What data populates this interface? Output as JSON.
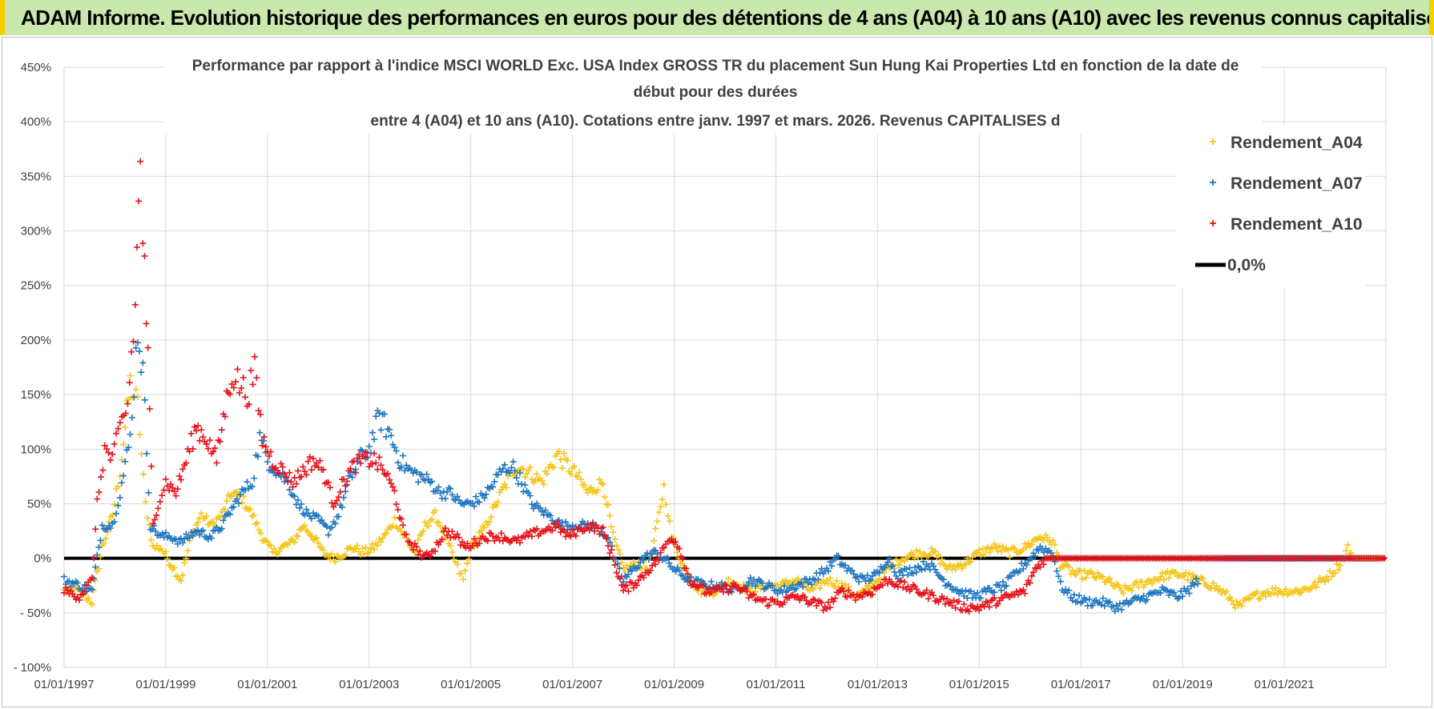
{
  "header": {
    "title": "ADAM Informe. Evolution historique des performances en euros pour des détentions de 4 ans (A04) à 10 ans (A10) avec les revenus connus capitalisés"
  },
  "chart_data": {
    "type": "scatter",
    "title_lines": [
      "Performance par rapport à l'indice MSCI WORLD Exc. USA Index GROSS TR  du placement Sun Hung Kai Properties Ltd en fonction de la date de",
      "début pour des durées",
      "entre 4 (A04) et 10 ans (A10).  Cotations entre janv. 1997 et mars. 2026. Revenus CAPITALISES d"
    ],
    "x_ticks": [
      "01/01/1997",
      "01/01/1999",
      "01/01/2001",
      "01/01/2003",
      "01/01/2005",
      "01/01/2007",
      "01/01/2009",
      "01/01/2011",
      "01/01/2013",
      "01/01/2015",
      "01/01/2017",
      "01/01/2019",
      "01/01/2021"
    ],
    "x_range": [
      1997.0,
      2023.0
    ],
    "y_ticks": [
      "450%",
      "400%",
      "350%",
      "300%",
      "250%",
      "200%",
      "150%",
      "100%",
      "50%",
      "0%",
      "- 50%",
      "- 100%"
    ],
    "y_range": [
      -100,
      450
    ],
    "series": [
      {
        "name": "Rendement_A04",
        "color": "#f5c518",
        "points": [
          [
            1997.0,
            -30
          ],
          [
            1997.3,
            -30
          ],
          [
            1997.55,
            -40
          ],
          [
            1997.75,
            10
          ],
          [
            1997.95,
            40
          ],
          [
            1998.1,
            80
          ],
          [
            1998.3,
            160
          ],
          [
            1998.45,
            140
          ],
          [
            1998.6,
            50
          ],
          [
            1998.75,
            10
          ],
          [
            1998.9,
            10
          ],
          [
            1999.1,
            -5
          ],
          [
            1999.3,
            -20
          ],
          [
            1999.5,
            20
          ],
          [
            1999.7,
            40
          ],
          [
            1999.9,
            30
          ],
          [
            2000.1,
            40
          ],
          [
            2000.3,
            60
          ],
          [
            2000.5,
            55
          ],
          [
            2000.7,
            40
          ],
          [
            2000.9,
            20
          ],
          [
            2001.1,
            5
          ],
          [
            2001.3,
            10
          ],
          [
            2001.5,
            15
          ],
          [
            2001.7,
            30
          ],
          [
            2001.9,
            20
          ],
          [
            2002.1,
            5
          ],
          [
            2002.3,
            0
          ],
          [
            2002.5,
            5
          ],
          [
            2002.7,
            10
          ],
          [
            2002.9,
            5
          ],
          [
            2003.1,
            10
          ],
          [
            2003.3,
            20
          ],
          [
            2003.5,
            35
          ],
          [
            2003.7,
            20
          ],
          [
            2003.9,
            5
          ],
          [
            2004.1,
            30
          ],
          [
            2004.3,
            40
          ],
          [
            2004.5,
            20
          ],
          [
            2004.7,
            -5
          ],
          [
            2004.85,
            -20
          ],
          [
            2005.0,
            10
          ],
          [
            2005.3,
            30
          ],
          [
            2005.6,
            60
          ],
          [
            2005.9,
            85
          ],
          [
            2006.1,
            80
          ],
          [
            2006.4,
            70
          ],
          [
            2006.7,
            95
          ],
          [
            2006.9,
            85
          ],
          [
            2007.1,
            75
          ],
          [
            2007.3,
            60
          ],
          [
            2007.6,
            70
          ],
          [
            2007.8,
            20
          ],
          [
            2008.0,
            -10
          ],
          [
            2008.3,
            -5
          ],
          [
            2008.5,
            -10
          ],
          [
            2008.7,
            40
          ],
          [
            2008.8,
            65
          ],
          [
            2008.95,
            20
          ],
          [
            2009.2,
            -10
          ],
          [
            2009.5,
            -30
          ],
          [
            2009.8,
            -30
          ],
          [
            2010.1,
            -20
          ],
          [
            2010.5,
            -30
          ],
          [
            2010.8,
            -25
          ],
          [
            2011.1,
            -25
          ],
          [
            2011.4,
            -20
          ],
          [
            2011.7,
            -30
          ],
          [
            2012.0,
            -20
          ],
          [
            2012.3,
            -25
          ],
          [
            2012.6,
            -35
          ],
          [
            2012.9,
            -25
          ],
          [
            2013.2,
            -10
          ],
          [
            2013.5,
            0
          ],
          [
            2013.8,
            5
          ],
          [
            2014.1,
            5
          ],
          [
            2014.4,
            -10
          ],
          [
            2014.7,
            -5
          ],
          [
            2015.0,
            5
          ],
          [
            2015.3,
            10
          ],
          [
            2015.6,
            5
          ],
          [
            2015.9,
            10
          ],
          [
            2016.2,
            20
          ],
          [
            2016.45,
            15
          ],
          [
            2016.6,
            -5
          ],
          [
            2016.9,
            -15
          ],
          [
            2017.2,
            -15
          ],
          [
            2017.5,
            -20
          ],
          [
            2017.8,
            -30
          ],
          [
            2018.1,
            -25
          ],
          [
            2018.4,
            -20
          ],
          [
            2018.7,
            -15
          ],
          [
            2019.0,
            -15
          ],
          [
            2019.3,
            -20
          ],
          [
            2019.6,
            -25
          ],
          [
            2019.9,
            -35
          ],
          [
            2020.1,
            -45
          ],
          [
            2020.4,
            -35
          ],
          [
            2020.7,
            -30
          ],
          [
            2021.0,
            -30
          ],
          [
            2021.3,
            -30
          ],
          [
            2021.6,
            -25
          ],
          [
            2021.9,
            -15
          ],
          [
            2022.1,
            -5
          ],
          [
            2022.25,
            10
          ],
          [
            2022.35,
            0
          ],
          [
            2022.6,
            0
          ],
          [
            2023.0,
            0
          ]
        ]
      },
      {
        "name": "Rendement_A07",
        "color": "#1f77c0",
        "points": [
          [
            1997.0,
            -20
          ],
          [
            1997.3,
            -25
          ],
          [
            1997.55,
            -30
          ],
          [
            1997.75,
            30
          ],
          [
            1997.95,
            30
          ],
          [
            1998.1,
            60
          ],
          [
            1998.3,
            110
          ],
          [
            1998.45,
            210
          ],
          [
            1998.55,
            170
          ],
          [
            1998.7,
            30
          ],
          [
            1998.9,
            20
          ],
          [
            1999.1,
            20
          ],
          [
            1999.3,
            15
          ],
          [
            1999.6,
            25
          ],
          [
            1999.9,
            20
          ],
          [
            2000.1,
            30
          ],
          [
            2000.3,
            45
          ],
          [
            2000.5,
            60
          ],
          [
            2000.7,
            70
          ],
          [
            2000.85,
            110
          ],
          [
            2001.0,
            90
          ],
          [
            2001.2,
            80
          ],
          [
            2001.4,
            70
          ],
          [
            2001.6,
            50
          ],
          [
            2001.8,
            40
          ],
          [
            2002.0,
            35
          ],
          [
            2002.2,
            25
          ],
          [
            2002.4,
            40
          ],
          [
            2002.6,
            70
          ],
          [
            2002.8,
            90
          ],
          [
            2003.0,
            100
          ],
          [
            2003.2,
            130
          ],
          [
            2003.4,
            115
          ],
          [
            2003.6,
            90
          ],
          [
            2003.8,
            80
          ],
          [
            2004.0,
            75
          ],
          [
            2004.2,
            70
          ],
          [
            2004.4,
            60
          ],
          [
            2004.6,
            60
          ],
          [
            2004.8,
            50
          ],
          [
            2005.0,
            50
          ],
          [
            2005.2,
            55
          ],
          [
            2005.4,
            65
          ],
          [
            2005.6,
            80
          ],
          [
            2005.8,
            85
          ],
          [
            2006.0,
            70
          ],
          [
            2006.2,
            50
          ],
          [
            2006.5,
            40
          ],
          [
            2006.8,
            30
          ],
          [
            2007.1,
            30
          ],
          [
            2007.4,
            30
          ],
          [
            2007.7,
            20
          ],
          [
            2007.85,
            -5
          ],
          [
            2008.0,
            -20
          ],
          [
            2008.2,
            -10
          ],
          [
            2008.4,
            0
          ],
          [
            2008.6,
            5
          ],
          [
            2008.8,
            0
          ],
          [
            2009.0,
            -10
          ],
          [
            2009.3,
            -20
          ],
          [
            2009.6,
            -25
          ],
          [
            2009.9,
            -25
          ],
          [
            2010.2,
            -30
          ],
          [
            2010.5,
            -20
          ],
          [
            2010.8,
            -25
          ],
          [
            2011.1,
            -30
          ],
          [
            2011.4,
            -25
          ],
          [
            2011.7,
            -20
          ],
          [
            2012.0,
            -10
          ],
          [
            2012.2,
            0
          ],
          [
            2012.4,
            -10
          ],
          [
            2012.7,
            -20
          ],
          [
            2013.0,
            -15
          ],
          [
            2013.2,
            0
          ],
          [
            2013.4,
            -15
          ],
          [
            2013.7,
            -10
          ],
          [
            2014.0,
            -5
          ],
          [
            2014.3,
            -20
          ],
          [
            2014.6,
            -30
          ],
          [
            2014.9,
            -35
          ],
          [
            2015.2,
            -30
          ],
          [
            2015.5,
            -25
          ],
          [
            2015.8,
            -10
          ],
          [
            2016.0,
            0
          ],
          [
            2016.2,
            10
          ],
          [
            2016.45,
            5
          ],
          [
            2016.6,
            -25
          ],
          [
            2016.8,
            -35
          ],
          [
            2017.1,
            -40
          ],
          [
            2017.4,
            -40
          ],
          [
            2017.7,
            -45
          ],
          [
            2018.0,
            -40
          ],
          [
            2018.3,
            -35
          ],
          [
            2018.6,
            -30
          ],
          [
            2018.9,
            -35
          ],
          [
            2019.1,
            -30
          ],
          [
            2019.3,
            -20
          ],
          [
            2019.35,
            0
          ],
          [
            2020.0,
            0
          ],
          [
            2023.0,
            0
          ]
        ]
      },
      {
        "name": "Rendement_A10",
        "color": "#e8121a",
        "points": [
          [
            1997.0,
            -30
          ],
          [
            1997.3,
            -35
          ],
          [
            1997.55,
            -20
          ],
          [
            1997.65,
            50
          ],
          [
            1997.8,
            100
          ],
          [
            1997.95,
            90
          ],
          [
            1998.1,
            120
          ],
          [
            1998.25,
            140
          ],
          [
            1998.4,
            230
          ],
          [
            1998.5,
            370
          ],
          [
            1998.55,
            300
          ],
          [
            1998.65,
            180
          ],
          [
            1998.75,
            30
          ],
          [
            1998.85,
            50
          ],
          [
            1999.0,
            70
          ],
          [
            1999.2,
            60
          ],
          [
            1999.4,
            90
          ],
          [
            1999.6,
            120
          ],
          [
            1999.8,
            110
          ],
          [
            2000.0,
            90
          ],
          [
            2000.1,
            120
          ],
          [
            2000.3,
            170
          ],
          [
            2000.45,
            160
          ],
          [
            2000.6,
            150
          ],
          [
            2000.75,
            170
          ],
          [
            2000.9,
            110
          ],
          [
            2001.1,
            90
          ],
          [
            2001.3,
            80
          ],
          [
            2001.5,
            70
          ],
          [
            2001.7,
            80
          ],
          [
            2001.9,
            90
          ],
          [
            2002.1,
            80
          ],
          [
            2002.3,
            50
          ],
          [
            2002.5,
            70
          ],
          [
            2002.7,
            85
          ],
          [
            2002.9,
            90
          ],
          [
            2003.1,
            90
          ],
          [
            2003.3,
            80
          ],
          [
            2003.5,
            60
          ],
          [
            2003.7,
            20
          ],
          [
            2003.9,
            10
          ],
          [
            2004.1,
            0
          ],
          [
            2004.3,
            10
          ],
          [
            2004.5,
            25
          ],
          [
            2004.7,
            20
          ],
          [
            2004.9,
            10
          ],
          [
            2005.1,
            15
          ],
          [
            2005.3,
            20
          ],
          [
            2005.6,
            20
          ],
          [
            2005.9,
            15
          ],
          [
            2006.1,
            20
          ],
          [
            2006.4,
            25
          ],
          [
            2006.7,
            30
          ],
          [
            2006.9,
            20
          ],
          [
            2007.1,
            25
          ],
          [
            2007.3,
            30
          ],
          [
            2007.6,
            25
          ],
          [
            2007.8,
            0
          ],
          [
            2008.0,
            -30
          ],
          [
            2008.3,
            -20
          ],
          [
            2008.5,
            -10
          ],
          [
            2008.7,
            0
          ],
          [
            2008.8,
            10
          ],
          [
            2008.95,
            20
          ],
          [
            2009.1,
            10
          ],
          [
            2009.3,
            -20
          ],
          [
            2009.6,
            -30
          ],
          [
            2009.9,
            -30
          ],
          [
            2010.2,
            -25
          ],
          [
            2010.5,
            -35
          ],
          [
            2010.8,
            -40
          ],
          [
            2011.1,
            -40
          ],
          [
            2011.4,
            -35
          ],
          [
            2011.7,
            -40
          ],
          [
            2012.0,
            -45
          ],
          [
            2012.3,
            -30
          ],
          [
            2012.6,
            -35
          ],
          [
            2012.9,
            -30
          ],
          [
            2013.2,
            -20
          ],
          [
            2013.5,
            -25
          ],
          [
            2013.8,
            -30
          ],
          [
            2014.1,
            -35
          ],
          [
            2014.4,
            -40
          ],
          [
            2014.7,
            -45
          ],
          [
            2015.0,
            -45
          ],
          [
            2015.3,
            -40
          ],
          [
            2015.6,
            -35
          ],
          [
            2015.9,
            -30
          ],
          [
            2016.1,
            -10
          ],
          [
            2016.3,
            0
          ],
          [
            2016.5,
            0
          ],
          [
            2019.0,
            0
          ],
          [
            2023.0,
            0
          ]
        ]
      },
      {
        "name": "0,0%",
        "color": "#000000",
        "type": "line",
        "value": 0
      }
    ],
    "legend": [
      "Rendement_A04",
      "Rendement_A07",
      "Rendement_A10",
      "0,0%"
    ],
    "legend_position": "top-right"
  }
}
